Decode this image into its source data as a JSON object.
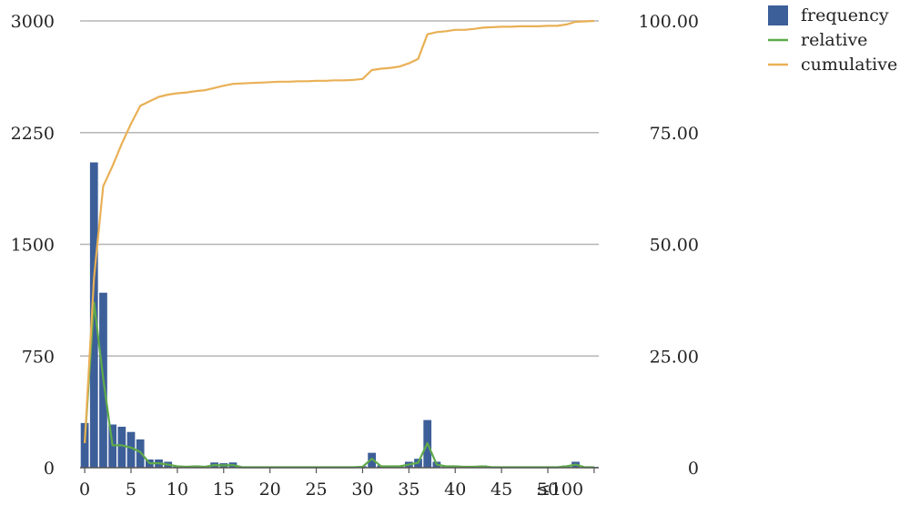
{
  "chart_data": {
    "type": "bar",
    "title": "",
    "xlabel": "",
    "ylabel": "",
    "ylim": [
      0,
      3000
    ],
    "y2lim": [
      0,
      100
    ],
    "grid": true,
    "legend_placement": "top-right",
    "x_tick_labels": [
      "0",
      "5",
      "10",
      "15",
      "20",
      "25",
      "30",
      "35",
      "40",
      "45",
      "50",
      "≤100"
    ],
    "y_tick_labels": [
      "0",
      "750",
      "1500",
      "2250",
      "3000"
    ],
    "y2_tick_labels": [
      "0",
      "25.00",
      "50.00",
      "75.00",
      "100.00"
    ],
    "categories": [
      "0",
      "1",
      "2",
      "3",
      "4",
      "5",
      "6",
      "7",
      "8",
      "9",
      "10",
      "11",
      "12",
      "13",
      "14",
      "15",
      "16",
      "17",
      "18",
      "19",
      "20",
      "21",
      "22",
      "23",
      "24",
      "25",
      "26",
      "27",
      "28",
      "29",
      "30",
      "31",
      "32",
      "33",
      "34",
      "35",
      "36",
      "37",
      "38",
      "39",
      "40",
      "41",
      "42",
      "43",
      "44",
      "45",
      "46",
      "47",
      "48",
      "49",
      "50",
      "51",
      "52",
      "53",
      "54",
      "≤100"
    ],
    "colors": {
      "frequency": "#3d5f99",
      "relative": "#5faa4a",
      "cumulative": "#e9b055",
      "grid": "#b5b5b5",
      "axis": "#555555"
    },
    "series": [
      {
        "name": "frequency",
        "kind": "bar",
        "axis": "left",
        "values": [
          300,
          2050,
          1175,
          290,
          275,
          240,
          190,
          55,
          55,
          40,
          15,
          10,
          15,
          10,
          35,
          30,
          35,
          5,
          5,
          5,
          5,
          5,
          5,
          5,
          5,
          5,
          5,
          5,
          5,
          5,
          10,
          100,
          15,
          15,
          15,
          40,
          60,
          320,
          40,
          15,
          15,
          10,
          10,
          15,
          5,
          5,
          5,
          5,
          5,
          5,
          5,
          5,
          15,
          40,
          5,
          5
        ]
      },
      {
        "name": "relative",
        "kind": "line",
        "axis": "right",
        "values": [
          5.5,
          37,
          20,
          5,
          5,
          4.5,
          3.5,
          1,
          1,
          0.7,
          0.3,
          0.2,
          0.3,
          0.2,
          0.6,
          0.5,
          0.6,
          0.1,
          0.1,
          0.1,
          0.1,
          0.1,
          0.1,
          0.1,
          0.1,
          0.1,
          0.1,
          0.1,
          0.1,
          0.1,
          0.2,
          2,
          0.3,
          0.3,
          0.3,
          0.7,
          1.1,
          5.5,
          0.7,
          0.3,
          0.3,
          0.2,
          0.2,
          0.3,
          0.1,
          0.1,
          0.1,
          0.1,
          0.1,
          0.1,
          0.1,
          0.1,
          0.3,
          0.7,
          0.1,
          0.1
        ]
      },
      {
        "name": "cumulative",
        "kind": "line",
        "axis": "right",
        "values": [
          5.5,
          42.5,
          63,
          67.5,
          72.5,
          77,
          81,
          82,
          83,
          83.5,
          83.8,
          84,
          84.3,
          84.5,
          85,
          85.5,
          85.9,
          86,
          86.1,
          86.2,
          86.3,
          86.4,
          86.4,
          86.5,
          86.5,
          86.6,
          86.6,
          86.7,
          86.7,
          86.8,
          87,
          89,
          89.3,
          89.5,
          89.8,
          90.5,
          91.5,
          97,
          97.5,
          97.7,
          98,
          98,
          98.2,
          98.5,
          98.6,
          98.7,
          98.7,
          98.8,
          98.8,
          98.8,
          98.9,
          98.9,
          99.2,
          99.8,
          99.9,
          100
        ]
      }
    ]
  }
}
